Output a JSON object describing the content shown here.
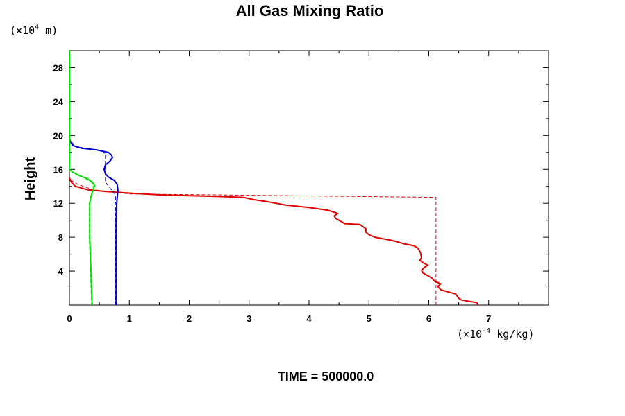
{
  "chart_data": {
    "type": "line",
    "title": "All Gas Mixing Ratio",
    "xlabel": "",
    "ylabel": "Height",
    "x_unit": {
      "prefix": "(×10",
      "exp": "-4",
      "suffix": " kg/kg)"
    },
    "y_unit": {
      "prefix": "(×10",
      "exp": "4",
      "suffix": " m)"
    },
    "xlim": [
      0,
      8
    ],
    "ylim": [
      0,
      30
    ],
    "x_ticks": [
      0,
      1,
      2,
      3,
      4,
      5,
      6,
      7
    ],
    "x_tick_labels": [
      "0",
      "1",
      "2",
      "3",
      "4",
      "5",
      "6",
      "7"
    ],
    "y_ticks": [
      4,
      8,
      12,
      16,
      20,
      24,
      28
    ],
    "y_tick_labels": [
      "4",
      "8",
      "12",
      "16",
      "20",
      "24",
      "28"
    ],
    "grid": false,
    "footer": "TIME = 500000.0",
    "series": [
      {
        "color": "#e00000",
        "style": "solid",
        "points": [
          [
            6.82,
            0.0
          ],
          [
            6.8,
            0.3
          ],
          [
            6.7,
            0.4
          ],
          [
            6.55,
            0.6
          ],
          [
            6.5,
            0.8
          ],
          [
            6.45,
            1.3
          ],
          [
            6.3,
            1.6
          ],
          [
            6.2,
            1.8
          ],
          [
            6.15,
            2.2
          ],
          [
            6.2,
            2.5
          ],
          [
            6.1,
            2.8
          ],
          [
            6.05,
            3.2
          ],
          [
            5.95,
            3.6
          ],
          [
            5.9,
            3.8
          ],
          [
            5.88,
            4.1
          ],
          [
            5.92,
            4.4
          ],
          [
            5.98,
            4.7
          ],
          [
            5.9,
            5.0
          ],
          [
            5.85,
            5.3
          ],
          [
            5.88,
            5.6
          ],
          [
            5.86,
            6.2
          ],
          [
            5.82,
            6.7
          ],
          [
            5.75,
            7.0
          ],
          [
            5.6,
            7.2
          ],
          [
            5.4,
            7.6
          ],
          [
            5.1,
            8.0
          ],
          [
            5.0,
            8.3
          ],
          [
            4.95,
            8.6
          ],
          [
            4.95,
            9.0
          ],
          [
            4.85,
            9.5
          ],
          [
            4.6,
            9.6
          ],
          [
            4.5,
            10.0
          ],
          [
            4.45,
            10.2
          ],
          [
            4.42,
            10.5
          ],
          [
            4.48,
            10.8
          ],
          [
            4.4,
            11.0
          ],
          [
            4.3,
            11.2
          ],
          [
            4.0,
            11.5
          ],
          [
            3.6,
            11.8
          ],
          [
            3.45,
            12.0
          ],
          [
            3.3,
            12.2
          ],
          [
            3.1,
            12.4
          ],
          [
            2.9,
            12.7
          ],
          [
            2.5,
            12.8
          ],
          [
            2.0,
            12.9
          ],
          [
            1.5,
            13.0
          ],
          [
            1.0,
            13.2
          ],
          [
            0.6,
            13.4
          ],
          [
            0.3,
            13.6
          ],
          [
            0.1,
            14.0
          ],
          [
            0.03,
            14.5
          ],
          [
            0.0,
            15.0
          ]
        ]
      },
      {
        "color": "#e00000",
        "style": "dashed",
        "points": [
          [
            6.12,
            0.0
          ],
          [
            6.12,
            12.7
          ],
          [
            1.0,
            13.1
          ],
          [
            0.4,
            13.6
          ],
          [
            0.15,
            14.2
          ],
          [
            0.05,
            14.6
          ],
          [
            0.0,
            15.0
          ]
        ]
      },
      {
        "color": "#0000d0",
        "style": "solid",
        "points": [
          [
            0.78,
            0.0
          ],
          [
            0.78,
            2.0
          ],
          [
            0.78,
            4.0
          ],
          [
            0.78,
            6.0
          ],
          [
            0.78,
            8.0
          ],
          [
            0.78,
            10.0
          ],
          [
            0.79,
            12.0
          ],
          [
            0.8,
            12.8
          ],
          [
            0.81,
            13.5
          ],
          [
            0.8,
            14.2
          ],
          [
            0.75,
            14.7
          ],
          [
            0.65,
            15.1
          ],
          [
            0.6,
            15.5
          ],
          [
            0.58,
            16.0
          ],
          [
            0.6,
            16.5
          ],
          [
            0.68,
            17.0
          ],
          [
            0.72,
            17.4
          ],
          [
            0.7,
            17.7
          ],
          [
            0.65,
            18.0
          ],
          [
            0.45,
            18.3
          ],
          [
            0.2,
            18.5
          ],
          [
            0.06,
            18.8
          ],
          [
            0.02,
            19.2
          ],
          [
            0.0,
            19.6
          ]
        ]
      },
      {
        "color": "#0000d0",
        "style": "dashed",
        "points": [
          [
            0.77,
            0.0
          ],
          [
            0.77,
            2.0
          ],
          [
            0.77,
            12.0
          ],
          [
            0.77,
            13.0
          ],
          [
            0.7,
            13.6
          ],
          [
            0.6,
            14.5
          ],
          [
            0.6,
            15.5
          ],
          [
            0.6,
            16.4
          ],
          [
            0.6,
            17.8
          ],
          [
            0.55,
            18.2
          ],
          [
            0.3,
            18.4
          ],
          [
            0.08,
            18.8
          ],
          [
            0.0,
            19.6
          ]
        ]
      },
      {
        "color": "#00e000",
        "style": "solid",
        "points": [
          [
            0.38,
            0.0
          ],
          [
            0.37,
            2.0
          ],
          [
            0.36,
            4.0
          ],
          [
            0.35,
            6.0
          ],
          [
            0.34,
            8.0
          ],
          [
            0.34,
            10.0
          ],
          [
            0.34,
            12.0
          ],
          [
            0.36,
            12.8
          ],
          [
            0.4,
            13.6
          ],
          [
            0.42,
            14.1
          ],
          [
            0.38,
            14.5
          ],
          [
            0.3,
            14.9
          ],
          [
            0.15,
            15.3
          ],
          [
            0.05,
            15.7
          ],
          [
            0.0,
            16.0
          ],
          [
            0.0,
            18.0
          ],
          [
            0.0,
            22.0
          ],
          [
            0.0,
            26.0
          ],
          [
            0.0,
            30.0
          ]
        ]
      },
      {
        "color": "#00e000",
        "style": "dashed",
        "points": [
          [
            0.37,
            0.0
          ],
          [
            0.35,
            4.0
          ],
          [
            0.33,
            8.0
          ],
          [
            0.33,
            12.0
          ],
          [
            0.36,
            13.0
          ],
          [
            0.4,
            13.8
          ],
          [
            0.38,
            14.4
          ],
          [
            0.25,
            15.0
          ],
          [
            0.08,
            15.6
          ],
          [
            0.0,
            16.0
          ]
        ]
      }
    ]
  }
}
